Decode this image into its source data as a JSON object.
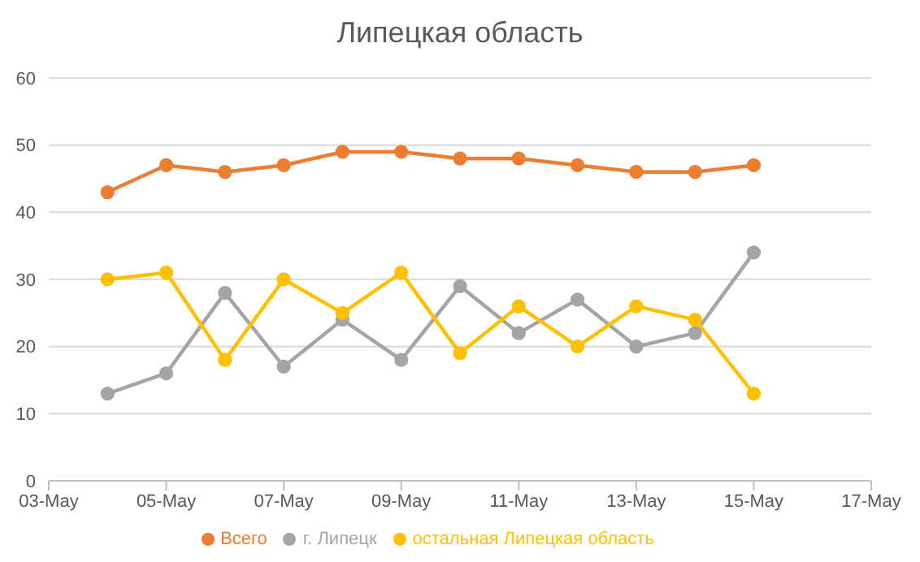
{
  "chart_data": {
    "type": "line",
    "title": "Липецкая область",
    "x": [
      "--05-04",
      "--05-05",
      "--05-06",
      "--05-07",
      "--05-08",
      "--05-09",
      "--05-10",
      "--05-11",
      "--05-12",
      "--05-13",
      "--05-14",
      "--05-15"
    ],
    "series": [
      {
        "name": "Всего",
        "color": "#ed7d31",
        "values": [
          43,
          47,
          46,
          47,
          49,
          49,
          48,
          48,
          47,
          46,
          46,
          47
        ]
      },
      {
        "name": "г. Липецк",
        "color": "#a5a5a5",
        "values": [
          13,
          16,
          28,
          17,
          24,
          18,
          29,
          22,
          27,
          20,
          22,
          34
        ]
      },
      {
        "name": "остальная Липецкая область",
        "color": "#ffc000",
        "values": [
          30,
          31,
          18,
          30,
          25,
          31,
          19,
          26,
          20,
          26,
          24,
          13
        ]
      }
    ],
    "xlim": [
      "--05-03",
      "--05-17"
    ],
    "xticks": [
      {
        "value": "--05-03",
        "label": "03-May"
      },
      {
        "value": "--05-05",
        "label": "05-May"
      },
      {
        "value": "--05-07",
        "label": "07-May"
      },
      {
        "value": "--05-09",
        "label": "09-May"
      },
      {
        "value": "--05-11",
        "label": "11-May"
      },
      {
        "value": "--05-13",
        "label": "13-May"
      },
      {
        "value": "--05-15",
        "label": "15-May"
      },
      {
        "value": "--05-17",
        "label": "17-May"
      }
    ],
    "ylim": [
      0,
      60
    ],
    "yticks": [
      0,
      10,
      20,
      30,
      40,
      50,
      60
    ],
    "grid": "y",
    "legend": "bottom",
    "marker": "circle",
    "line_style": "solid"
  }
}
